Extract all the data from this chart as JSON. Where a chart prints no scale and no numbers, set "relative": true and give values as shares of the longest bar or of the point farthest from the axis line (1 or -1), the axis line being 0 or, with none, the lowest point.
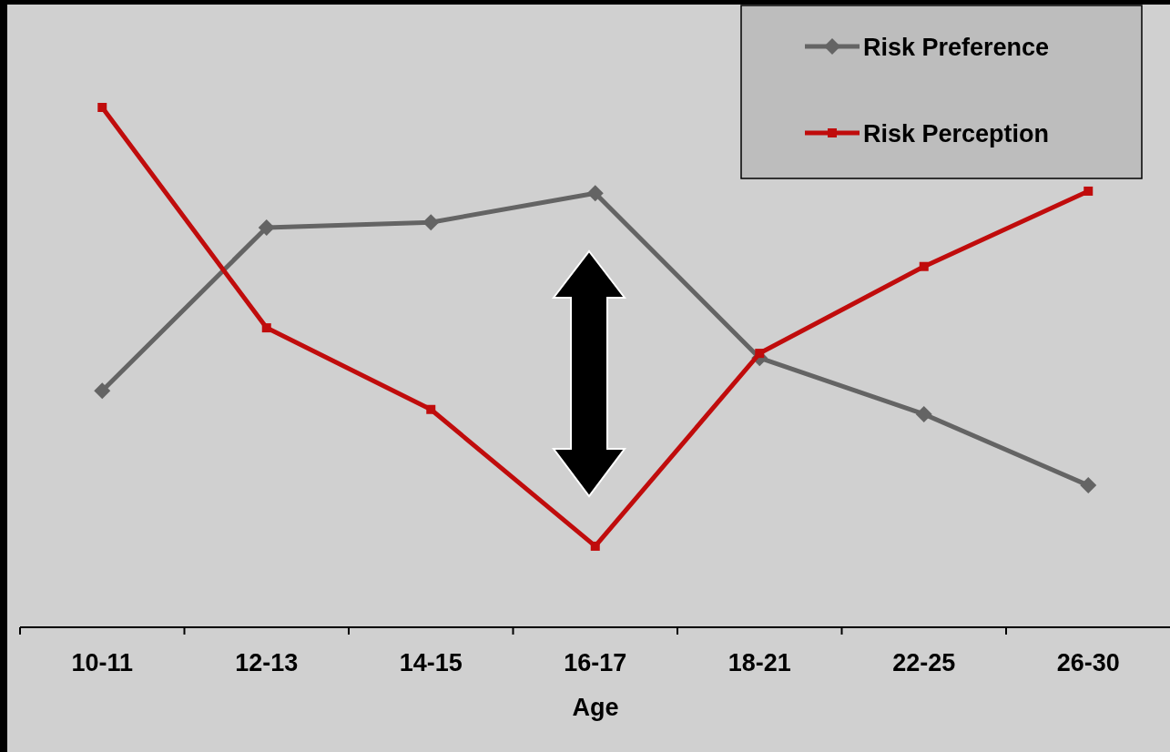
{
  "chart_data": {
    "type": "line",
    "xlabel": "Age",
    "categories": [
      "10-11",
      "12-13",
      "14-15",
      "16-17",
      "18-21",
      "22-25",
      "26-30"
    ],
    "relative": true,
    "legend": "top right",
    "line_style": "solid",
    "series": [
      {
        "name": "Risk Preference",
        "color": "#646464",
        "marker": "diamond",
        "values": [
          0.455,
          0.769,
          0.779,
          0.835,
          0.518,
          0.41,
          0.273
        ]
      },
      {
        "name": "Risk Perception",
        "color": "#c00c0c",
        "marker": "square",
        "values": [
          1,
          0.576,
          0.419,
          0.156,
          0.527,
          0.694,
          0.839
        ]
      }
    ]
  }
}
